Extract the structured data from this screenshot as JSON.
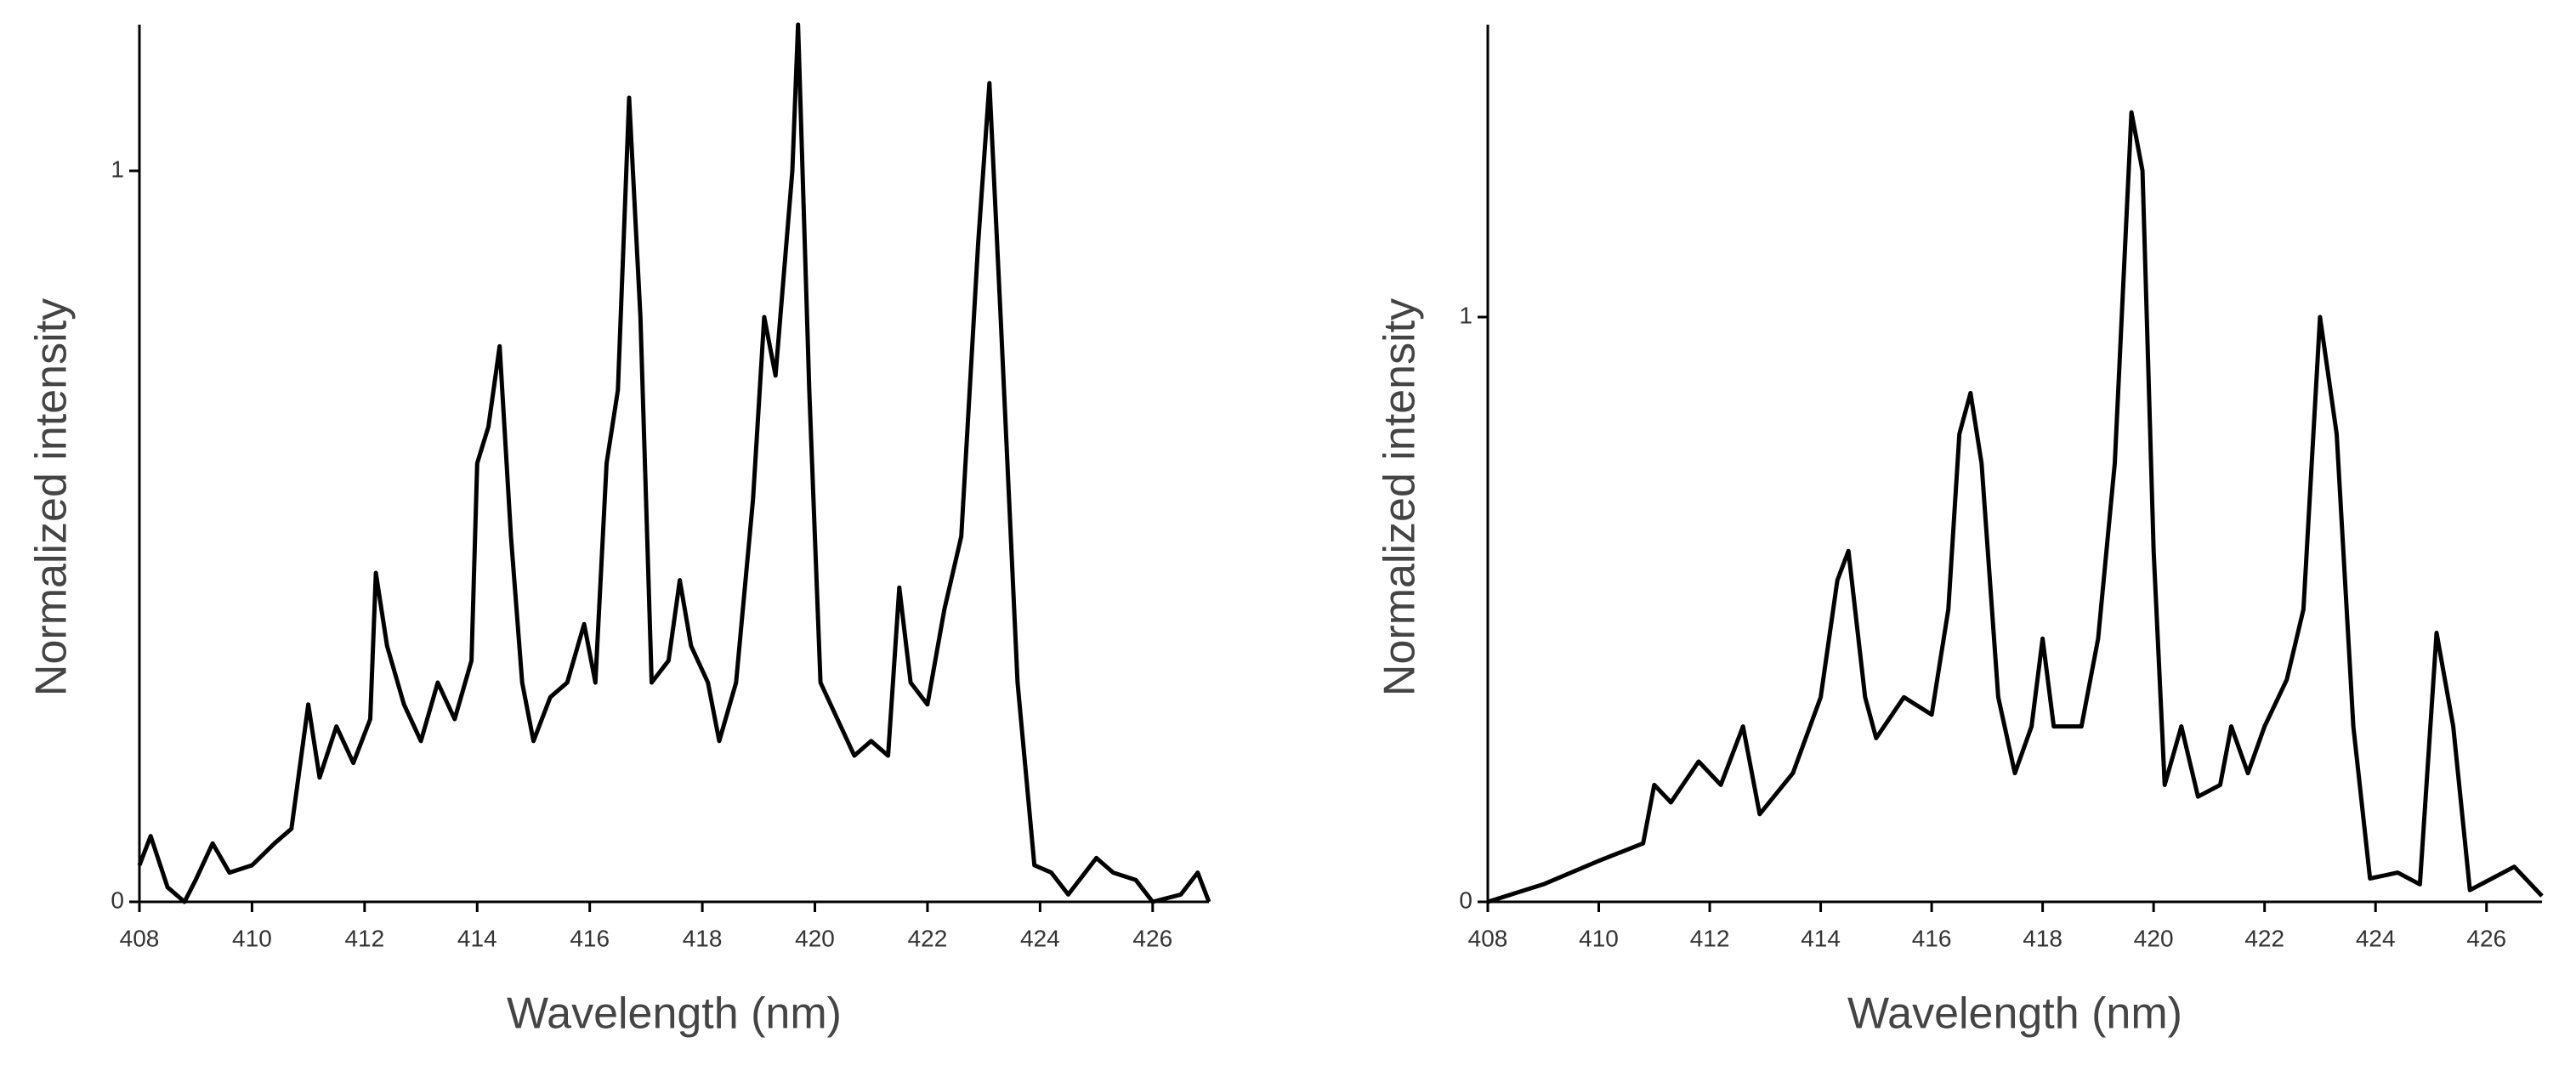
{
  "chart_data": [
    {
      "type": "line",
      "xlabel": "Wavelength (nm)",
      "ylabel": "Normalized intensity",
      "xlim": [
        408,
        427
      ],
      "ylim": [
        0,
        1.2
      ],
      "xticks": [
        408,
        410,
        412,
        414,
        416,
        418,
        420,
        422,
        424,
        426
      ],
      "yticks": [
        0,
        1
      ],
      "series": [
        {
          "color": "#000000",
          "x": [
            408,
            408.2,
            408.5,
            408.8,
            409,
            409.3,
            409.6,
            410,
            410.4,
            410.7,
            411,
            411.2,
            411.5,
            411.8,
            412.1,
            412.2,
            412.4,
            412.7,
            413,
            413.3,
            413.6,
            413.9,
            414,
            414.2,
            414.4,
            414.6,
            414.8,
            415,
            415.3,
            415.6,
            415.9,
            416.1,
            416.3,
            416.5,
            416.7,
            416.9,
            417.1,
            417.4,
            417.6,
            417.8,
            418.1,
            418.3,
            418.6,
            418.9,
            419.1,
            419.3,
            419.6,
            419.7,
            419.9,
            420.1,
            420.4,
            420.7,
            421,
            421.3,
            421.5,
            421.7,
            422,
            422.3,
            422.6,
            422.9,
            423.1,
            423.3,
            423.6,
            423.9,
            424.2,
            424.5,
            425,
            425.3,
            425.7,
            426,
            426.5,
            426.8,
            427
          ],
          "values": [
            0.05,
            0.09,
            0.02,
            0,
            0.03,
            0.08,
            0.04,
            0.05,
            0.08,
            0.1,
            0.27,
            0.17,
            0.24,
            0.19,
            0.25,
            0.45,
            0.35,
            0.27,
            0.22,
            0.3,
            0.25,
            0.33,
            0.6,
            0.65,
            0.76,
            0.5,
            0.3,
            0.22,
            0.28,
            0.3,
            0.38,
            0.3,
            0.6,
            0.7,
            1.1,
            0.8,
            0.3,
            0.33,
            0.44,
            0.35,
            0.3,
            0.22,
            0.3,
            0.55,
            0.8,
            0.72,
            1,
            1.2,
            0.7,
            0.3,
            0.25,
            0.2,
            0.22,
            0.2,
            0.43,
            0.3,
            0.27,
            0.4,
            0.5,
            0.9,
            1.12,
            0.8,
            0.3,
            0.05,
            0.04,
            0.01,
            0.06,
            0.04,
            0.03,
            0,
            0.01,
            0.04,
            0
          ]
        }
      ]
    },
    {
      "type": "line",
      "xlabel": "Wavelength (nm)",
      "ylabel": "Normalized intensity",
      "xlim": [
        408,
        427
      ],
      "ylim": [
        0,
        1.5
      ],
      "xticks": [
        408,
        410,
        412,
        414,
        416,
        418,
        420,
        422,
        424,
        426
      ],
      "yticks": [
        0,
        1
      ],
      "series": [
        {
          "color": "#000000",
          "x": [
            408,
            409,
            410,
            410.8,
            411,
            411.3,
            411.8,
            412.2,
            412.6,
            412.9,
            413.5,
            414,
            414.3,
            414.5,
            414.8,
            415,
            415.5,
            416,
            416.3,
            416.5,
            416.7,
            416.9,
            417.2,
            417.5,
            417.8,
            418,
            418.2,
            418.7,
            419,
            419.3,
            419.6,
            419.8,
            420,
            420.2,
            420.5,
            420.8,
            421.2,
            421.4,
            421.7,
            422,
            422.4,
            422.7,
            423,
            423.3,
            423.6,
            423.9,
            424.4,
            424.8,
            425.1,
            425.4,
            425.7,
            426.5,
            427
          ],
          "values": [
            0,
            0.03,
            0.07,
            0.1,
            0.2,
            0.17,
            0.24,
            0.2,
            0.3,
            0.15,
            0.22,
            0.35,
            0.55,
            0.6,
            0.35,
            0.28,
            0.35,
            0.32,
            0.5,
            0.8,
            0.87,
            0.75,
            0.35,
            0.22,
            0.3,
            0.45,
            0.3,
            0.3,
            0.45,
            0.75,
            1.35,
            1.25,
            0.6,
            0.2,
            0.3,
            0.18,
            0.2,
            0.3,
            0.22,
            0.3,
            0.38,
            0.5,
            1,
            0.8,
            0.3,
            0.04,
            0.05,
            0.03,
            0.46,
            0.3,
            0.02,
            0.06,
            0.01
          ]
        }
      ]
    }
  ]
}
